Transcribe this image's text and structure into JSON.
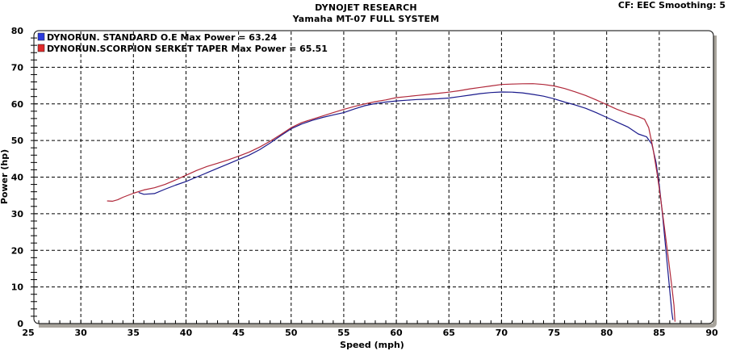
{
  "header": {
    "title": "DYNOJET RESEARCH",
    "subtitle": "Yamaha MT-07 FULL SYSTEM",
    "cf_info": "CF: EEC  Smoothing: 5"
  },
  "legend": [
    {
      "label": "DYNORUN. STANDARD O.E Max Power = 63.24",
      "color": "#1a1a8c",
      "swatch": "#2a3adf"
    },
    {
      "label": "DYNORUN.SCORPION SERKET TAPER Max Power = 65.51",
      "color": "#b0283a",
      "swatch": "#e02a2a"
    }
  ],
  "chart_data": {
    "type": "line",
    "title": "DYNOJET RESEARCH",
    "subtitle": "Yamaha MT-07 FULL SYSTEM",
    "annotation": "CF: EEC  Smoothing: 5",
    "xlabel": "Speed (mph)",
    "ylabel": "Power (hp)",
    "xlim": [
      25,
      90
    ],
    "ylim": [
      0,
      80
    ],
    "xticks": [
      25,
      30,
      35,
      40,
      45,
      50,
      55,
      60,
      65,
      70,
      75,
      80,
      85,
      90
    ],
    "yticks": [
      0,
      10,
      20,
      30,
      40,
      50,
      60,
      70,
      80
    ],
    "grid": true,
    "legend_position": "top-left inside",
    "series": [
      {
        "name": "DYNORUN. STANDARD O.E",
        "max_power": 63.24,
        "color": "#1a1a8c",
        "points": [
          [
            35.5,
            35.8
          ],
          [
            36.0,
            35.3
          ],
          [
            37.0,
            35.5
          ],
          [
            38.0,
            36.7
          ],
          [
            39.0,
            37.8
          ],
          [
            40.0,
            38.8
          ],
          [
            41.0,
            40.0
          ],
          [
            42.0,
            41.2
          ],
          [
            43.0,
            42.4
          ],
          [
            44.0,
            43.6
          ],
          [
            45.0,
            44.8
          ],
          [
            46.0,
            46.0
          ],
          [
            47.0,
            47.5
          ],
          [
            48.0,
            49.3
          ],
          [
            49.0,
            51.3
          ],
          [
            50.0,
            53.2
          ],
          [
            51.0,
            54.5
          ],
          [
            52.0,
            55.5
          ],
          [
            53.0,
            56.3
          ],
          [
            54.0,
            57.0
          ],
          [
            55.0,
            57.6
          ],
          [
            56.0,
            58.6
          ],
          [
            57.0,
            59.5
          ],
          [
            58.0,
            60.1
          ],
          [
            59.0,
            60.5
          ],
          [
            60.0,
            60.8
          ],
          [
            61.0,
            61.0
          ],
          [
            62.0,
            61.2
          ],
          [
            63.0,
            61.3
          ],
          [
            64.0,
            61.4
          ],
          [
            65.0,
            61.6
          ],
          [
            66.0,
            62.0
          ],
          [
            67.0,
            62.4
          ],
          [
            68.0,
            62.8
          ],
          [
            69.0,
            63.1
          ],
          [
            70.0,
            63.24
          ],
          [
            71.0,
            63.2
          ],
          [
            72.0,
            63.0
          ],
          [
            73.0,
            62.6
          ],
          [
            74.0,
            62.1
          ],
          [
            75.0,
            61.4
          ],
          [
            76.0,
            60.5
          ],
          [
            77.0,
            59.7
          ],
          [
            78.0,
            58.8
          ],
          [
            79.0,
            57.6
          ],
          [
            80.0,
            56.3
          ],
          [
            81.0,
            55.0
          ],
          [
            82.0,
            53.7
          ],
          [
            83.0,
            51.8
          ],
          [
            83.8,
            51.0
          ],
          [
            84.3,
            49.0
          ],
          [
            84.7,
            44.0
          ],
          [
            85.0,
            38.0
          ],
          [
            85.3,
            30.0
          ],
          [
            85.6,
            21.0
          ],
          [
            85.9,
            12.0
          ],
          [
            86.2,
            3.0
          ],
          [
            86.3,
            1.0
          ]
        ]
      },
      {
        "name": "DYNORUN.SCORPION SERKET TAPER",
        "max_power": 65.51,
        "color": "#b0283a",
        "points": [
          [
            32.5,
            33.5
          ],
          [
            33.0,
            33.4
          ],
          [
            33.5,
            33.8
          ],
          [
            34.0,
            34.5
          ],
          [
            35.0,
            35.6
          ],
          [
            36.0,
            36.5
          ],
          [
            37.0,
            37.1
          ],
          [
            38.0,
            38.0
          ],
          [
            39.0,
            39.2
          ],
          [
            40.0,
            40.5
          ],
          [
            41.0,
            41.8
          ],
          [
            42.0,
            42.9
          ],
          [
            43.0,
            43.8
          ],
          [
            44.0,
            44.7
          ],
          [
            45.0,
            45.7
          ],
          [
            46.0,
            46.8
          ],
          [
            47.0,
            48.2
          ],
          [
            48.0,
            49.8
          ],
          [
            49.0,
            51.6
          ],
          [
            50.0,
            53.5
          ],
          [
            51.0,
            54.9
          ],
          [
            52.0,
            55.8
          ],
          [
            53.0,
            56.7
          ],
          [
            54.0,
            57.6
          ],
          [
            55.0,
            58.5
          ],
          [
            56.0,
            59.3
          ],
          [
            57.0,
            60.0
          ],
          [
            58.0,
            60.6
          ],
          [
            59.0,
            61.1
          ],
          [
            60.0,
            61.7
          ],
          [
            61.0,
            62.0
          ],
          [
            62.0,
            62.3
          ],
          [
            63.0,
            62.6
          ],
          [
            64.0,
            62.9
          ],
          [
            65.0,
            63.2
          ],
          [
            66.0,
            63.6
          ],
          [
            67.0,
            64.1
          ],
          [
            68.0,
            64.5
          ],
          [
            69.0,
            64.9
          ],
          [
            70.0,
            65.3
          ],
          [
            71.0,
            65.4
          ],
          [
            72.0,
            65.5
          ],
          [
            73.0,
            65.51
          ],
          [
            74.0,
            65.3
          ],
          [
            75.0,
            64.9
          ],
          [
            76.0,
            64.2
          ],
          [
            77.0,
            63.3
          ],
          [
            78.0,
            62.3
          ],
          [
            79.0,
            61.1
          ],
          [
            80.0,
            59.8
          ],
          [
            81.0,
            58.5
          ],
          [
            82.0,
            57.4
          ],
          [
            83.0,
            56.5
          ],
          [
            83.6,
            55.8
          ],
          [
            84.0,
            53.5
          ],
          [
            84.4,
            48.0
          ],
          [
            84.8,
            41.0
          ],
          [
            85.1,
            35.0
          ],
          [
            85.5,
            26.0
          ],
          [
            85.9,
            17.0
          ],
          [
            86.2,
            10.0
          ],
          [
            86.4,
            5.0
          ],
          [
            86.5,
            0.5
          ]
        ]
      }
    ]
  }
}
